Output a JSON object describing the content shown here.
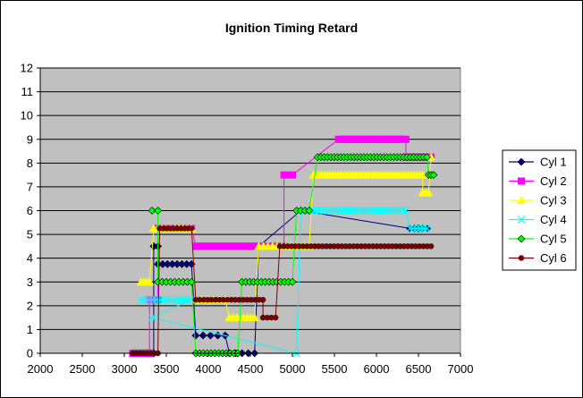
{
  "chart_data": {
    "type": "scatter",
    "title": "Ignition Timing Retard",
    "xlim": [
      2000,
      7000
    ],
    "ylim": [
      0,
      12
    ],
    "xticks": [
      2000,
      2500,
      3000,
      3500,
      4000,
      4500,
      5000,
      5500,
      6000,
      6500,
      7000
    ],
    "yticks": [
      0,
      1,
      2,
      3,
      4,
      5,
      6,
      7,
      8,
      9,
      10,
      11,
      12
    ],
    "plot_background": "#C0C0C0",
    "grid": "horizontal",
    "legend_position": "right",
    "series": [
      {
        "name": "Cyl 1",
        "color": "#000080",
        "marker": "diamond",
        "segments": [
          [
            3100,
            0,
            3350,
            0,
            25
          ],
          [
            3350,
            4.5,
            3400,
            4.5,
            2
          ],
          [
            3400,
            3.75,
            3800,
            3.75,
            8
          ],
          [
            3850,
            0.75,
            4200,
            0.75,
            5
          ],
          [
            4250,
            0,
            4550,
            0,
            5
          ],
          [
            4600,
            4.5,
            6400,
            4.5,
            0
          ],
          [
            5100,
            6,
            6350,
            6,
            0
          ],
          [
            6400,
            5.25,
            6600,
            5.25,
            5
          ]
        ],
        "extra_points": []
      },
      {
        "name": "Cyl 2",
        "color": "#FF00FF",
        "marker": "square",
        "segments": [
          [
            3100,
            0,
            3300,
            0,
            5
          ],
          [
            3300,
            2.25,
            3400,
            2.25,
            3
          ],
          [
            3400,
            5.25,
            3800,
            5.25,
            12
          ],
          [
            3850,
            4.5,
            4900,
            4.5,
            40
          ],
          [
            4900,
            7.5,
            5000,
            7.5,
            3
          ],
          [
            5550,
            9,
            6350,
            9,
            30
          ],
          [
            6350,
            8.25,
            6650,
            8.25,
            8
          ]
        ],
        "extra_points": []
      },
      {
        "name": "Cyl 3",
        "color": "#FFFF00",
        "marker": "triangle",
        "segments": [
          [
            3200,
            3,
            3300,
            3,
            4
          ],
          [
            3350,
            5.25,
            3800,
            5.25,
            10
          ],
          [
            3850,
            2.25,
            4200,
            2.25,
            6
          ],
          [
            4250,
            1.5,
            4550,
            1.5,
            8
          ],
          [
            4600,
            4.5,
            5200,
            4.5,
            12
          ],
          [
            5250,
            7.5,
            6550,
            7.5,
            40
          ],
          [
            6550,
            6.75,
            6620,
            6.75,
            3
          ],
          [
            6650,
            8.25,
            6650,
            8.25,
            1
          ]
        ],
        "extra_points": []
      },
      {
        "name": "Cyl 4",
        "color": "#00FFFF",
        "marker": "x",
        "segments": [
          [
            3200,
            2.25,
            3800,
            2.25,
            14
          ],
          [
            3330,
            1.5,
            3350,
            1.5,
            1
          ],
          [
            5050,
            0,
            5050,
            0,
            1
          ],
          [
            5100,
            6,
            6350,
            6,
            32
          ],
          [
            6400,
            5.25,
            6600,
            5.25,
            6
          ]
        ],
        "extra_points": []
      },
      {
        "name": "Cyl 5",
        "color": "#00FF00",
        "marker": "diamond",
        "segments": [
          [
            3330,
            6,
            3400,
            6,
            2
          ],
          [
            3400,
            3,
            3800,
            3,
            9
          ],
          [
            3850,
            0,
            4350,
            0,
            12
          ],
          [
            4400,
            3,
            5000,
            3,
            14
          ],
          [
            5050,
            6,
            5200,
            6,
            4
          ],
          [
            5300,
            8.25,
            6600,
            8.25,
            34
          ],
          [
            6620,
            7.5,
            6680,
            7.5,
            3
          ]
        ],
        "extra_points": []
      },
      {
        "name": "Cyl 6",
        "color": "#800000",
        "marker": "circle",
        "segments": [
          [
            3100,
            0,
            3400,
            0,
            8
          ],
          [
            3420,
            5.25,
            3800,
            5.25,
            10
          ],
          [
            3850,
            2.25,
            4650,
            2.25,
            18
          ],
          [
            4650,
            1.5,
            4800,
            1.5,
            4
          ],
          [
            4850,
            4.5,
            6650,
            4.5,
            40
          ]
        ],
        "extra_points": []
      }
    ]
  }
}
